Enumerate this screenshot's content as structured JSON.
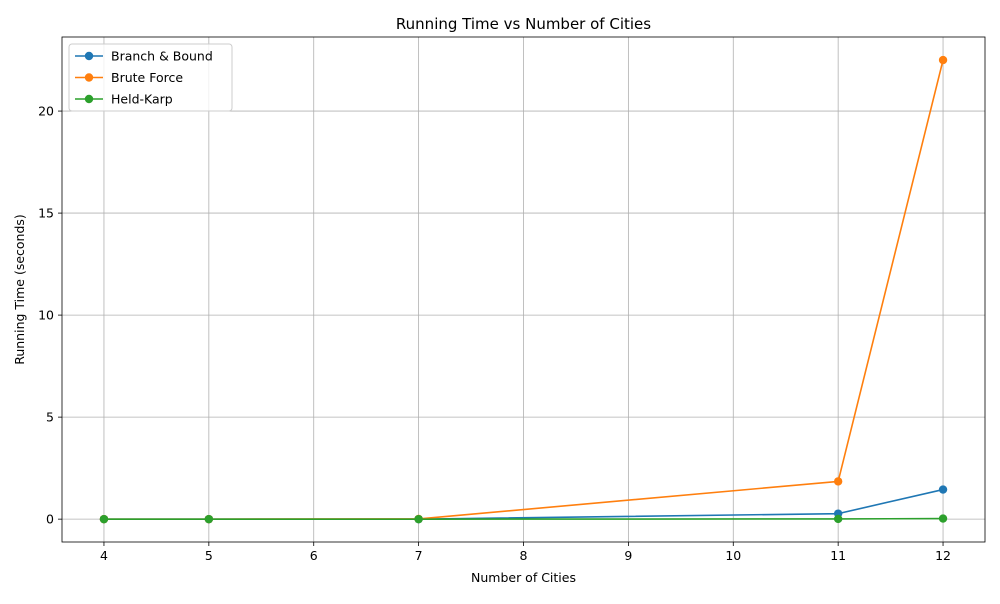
{
  "chart_data": {
    "type": "line",
    "title": "Running Time vs Number of Cities",
    "xlabel": "Number of Cities",
    "ylabel": "Running Time (seconds)",
    "x": [
      4,
      5,
      7,
      11,
      12
    ],
    "series": [
      {
        "name": "Branch & Bound",
        "color": "#1f77b4",
        "values": [
          0.0,
          0.0,
          0.0,
          0.27,
          1.45
        ]
      },
      {
        "name": "Brute Force",
        "color": "#ff7f0e",
        "values": [
          0.0,
          0.0,
          0.01,
          1.85,
          22.5
        ]
      },
      {
        "name": "Held-Karp",
        "color": "#2ca02c",
        "values": [
          0.0,
          0.0,
          0.0,
          0.01,
          0.03
        ]
      }
    ],
    "xlim": [
      3.6,
      12.4
    ],
    "ylim": [
      -1.12,
      23.63
    ],
    "xticks": [
      4,
      5,
      6,
      7,
      8,
      9,
      10,
      11,
      12
    ],
    "yticks": [
      0,
      5,
      10,
      15,
      20
    ],
    "grid": true,
    "legend_position": "top-left",
    "marker": "circle"
  }
}
